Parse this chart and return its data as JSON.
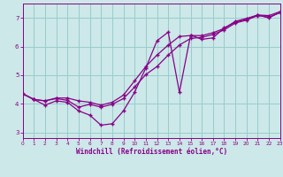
{
  "xlabel": "Windchill (Refroidissement éolien,°C)",
  "xlim": [
    0,
    23
  ],
  "ylim": [
    2.8,
    7.5
  ],
  "yticks": [
    3,
    4,
    5,
    6,
    7
  ],
  "xticks": [
    0,
    1,
    2,
    3,
    4,
    5,
    6,
    7,
    8,
    9,
    10,
    11,
    12,
    13,
    14,
    15,
    16,
    17,
    18,
    19,
    20,
    21,
    22,
    23
  ],
  "bg_color": "#cce8e8",
  "line_color": "#880088",
  "grid_color": "#99cccc",
  "series1_x": [
    0,
    1,
    2,
    3,
    4,
    5,
    6,
    7,
    8,
    9,
    10,
    11,
    12,
    13,
    14,
    15,
    16,
    17,
    18,
    19,
    20,
    21,
    22,
    23
  ],
  "series1_y": [
    4.35,
    4.15,
    3.95,
    4.1,
    4.05,
    3.75,
    3.6,
    3.25,
    3.3,
    3.75,
    4.4,
    5.25,
    6.2,
    6.5,
    4.4,
    6.4,
    6.25,
    6.3,
    6.65,
    6.85,
    6.95,
    7.1,
    7.0,
    7.2
  ],
  "series2_x": [
    0,
    1,
    2,
    3,
    4,
    5,
    6,
    7,
    8,
    9,
    10,
    11,
    12,
    13,
    14,
    15,
    16,
    17,
    18,
    19,
    20,
    21,
    22,
    23
  ],
  "series2_y": [
    4.35,
    4.15,
    4.1,
    4.2,
    4.2,
    4.1,
    4.05,
    3.95,
    4.05,
    4.3,
    4.8,
    5.3,
    5.7,
    6.05,
    6.35,
    6.38,
    6.38,
    6.48,
    6.63,
    6.88,
    6.98,
    7.1,
    7.08,
    7.22
  ],
  "series3_x": [
    0,
    1,
    2,
    3,
    4,
    5,
    6,
    7,
    8,
    9,
    10,
    11,
    12,
    13,
    14,
    15,
    16,
    17,
    18,
    19,
    20,
    21,
    22,
    23
  ],
  "series3_y": [
    4.35,
    4.15,
    4.1,
    4.18,
    4.12,
    3.88,
    3.98,
    3.88,
    3.98,
    4.18,
    4.58,
    5.02,
    5.3,
    5.7,
    6.05,
    6.28,
    6.32,
    6.42,
    6.58,
    6.82,
    6.92,
    7.08,
    7.03,
    7.18
  ]
}
